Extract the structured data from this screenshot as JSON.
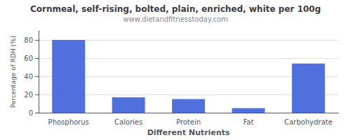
{
  "chart_data": {
    "type": "bar",
    "title": "Cornmeal, self-rising, bolted, plain, enriched, white per 100g",
    "subtitle": "www.dietandfitnesstoday.com",
    "xlabel": "Different Nutrients",
    "ylabel": "Percentage of RDH (%)",
    "categories": [
      "Phosphorus",
      "Calories",
      "Protein",
      "Fat",
      "Carbohydrate"
    ],
    "values": [
      80,
      17,
      15,
      5,
      54
    ],
    "ylim": [
      0,
      90
    ],
    "yticks": [
      0,
      20,
      40,
      60,
      80
    ],
    "grid": true
  }
}
